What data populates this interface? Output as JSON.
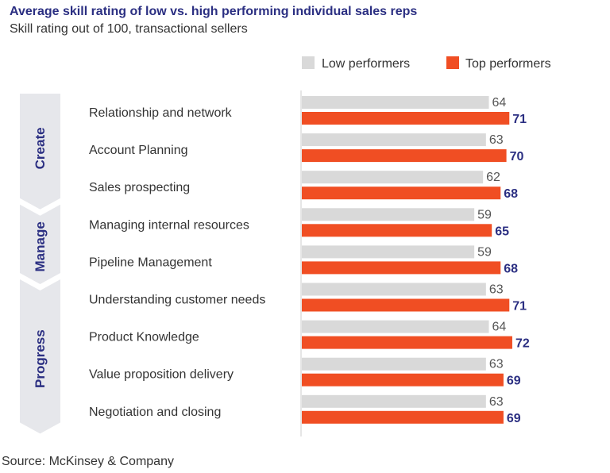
{
  "title": "Average skill rating of low vs. high performing individual sales reps",
  "subtitle": "Skill rating out of 100, transactional sellers",
  "source": "Source: McKinsey & Company",
  "colors": {
    "title": "#2b2f82",
    "low": "#d9d9d9",
    "top": "#f04e23",
    "top_label": "#2b2f82",
    "low_label": "#555555",
    "chevron": "#e6e7eb",
    "group_label": "#2b2f82",
    "category_text": "#333333",
    "axis": "#cccccc"
  },
  "chart_data": {
    "type": "bar",
    "orientation": "horizontal",
    "title": "Average skill rating of low vs. high performing individual sales reps",
    "subtitle": "Skill rating out of 100, transactional sellers",
    "xlim": [
      0,
      100
    ],
    "legend_position": "top-right",
    "categories": [
      "Relationship and network",
      "Account Planning",
      "Sales prospecting",
      "Managing internal resources",
      "Pipeline Management",
      "Understanding customer needs",
      "Product Knowledge",
      "Value proposition delivery",
      "Negotiation and closing"
    ],
    "series": [
      {
        "name": "Low performers",
        "values": [
          64,
          63,
          62,
          59,
          59,
          63,
          64,
          63,
          63
        ]
      },
      {
        "name": "Top performers",
        "values": [
          71,
          70,
          68,
          65,
          68,
          71,
          72,
          69,
          69
        ]
      }
    ],
    "groups": [
      {
        "label": "Create",
        "start": 0,
        "count": 3
      },
      {
        "label": "Manage",
        "start": 3,
        "count": 2
      },
      {
        "label": "Progress",
        "start": 5,
        "count": 4
      }
    ]
  }
}
